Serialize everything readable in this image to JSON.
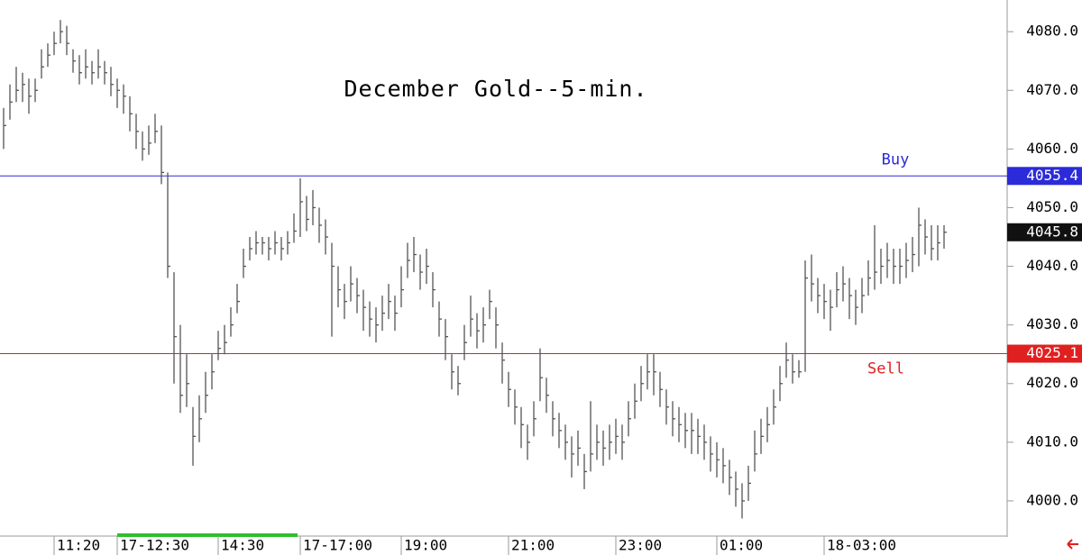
{
  "chart_data": {
    "type": "ohlc",
    "title": "December Gold--5-min.",
    "ylim": [
      3994,
      4085.4
    ],
    "yticks": [
      {
        "value": 4000,
        "label": "4000.0"
      },
      {
        "value": 4010,
        "label": "4010.0"
      },
      {
        "value": 4020,
        "label": "4020.0"
      },
      {
        "value": 4030,
        "label": "4030.0"
      },
      {
        "value": 4040,
        "label": "4040.0"
      },
      {
        "value": 4050,
        "label": "4050.0"
      },
      {
        "value": 4060,
        "label": "4060.0"
      },
      {
        "value": 4070,
        "label": "4070.0"
      },
      {
        "value": 4080,
        "label": "4080.0"
      }
    ],
    "xticks": [
      {
        "value": 8,
        "label": "11:20"
      },
      {
        "value": 18,
        "label": "17-12:30"
      },
      {
        "value": 34,
        "label": "14:30"
      },
      {
        "value": 47,
        "label": "17-17:00"
      },
      {
        "value": 63,
        "label": "19:00"
      },
      {
        "value": 80,
        "label": "21:00"
      },
      {
        "value": 97,
        "label": "23:00"
      },
      {
        "value": 113,
        "label": "01:00"
      },
      {
        "value": 130,
        "label": "18-03:00"
      }
    ],
    "levels": [
      {
        "name": "Buy",
        "value": 4055.4,
        "color": "#2b2bd9"
      },
      {
        "name": "Sell",
        "value": 4025.1,
        "color": "#e02020"
      }
    ],
    "last": 4045.8,
    "bar_color": "#555555",
    "bars": [
      [
        4067,
        4060,
        4064
      ],
      [
        4071,
        4065,
        4068
      ],
      [
        4074,
        4068,
        4070
      ],
      [
        4073,
        4068,
        4071
      ],
      [
        4072,
        4066,
        4069
      ],
      [
        4072,
        4068,
        4070
      ],
      [
        4077,
        4072,
        4074
      ],
      [
        4078,
        4074,
        4076
      ],
      [
        4080,
        4076,
        4078
      ],
      [
        4082,
        4078,
        4080
      ],
      [
        4081,
        4076,
        4078
      ],
      [
        4077,
        4073,
        4075
      ],
      [
        4076,
        4071,
        4073
      ],
      [
        4077,
        4072,
        4074
      ],
      [
        4075,
        4071,
        4073
      ],
      [
        4077,
        4072,
        4074
      ],
      [
        4075,
        4071,
        4073
      ],
      [
        4074,
        4069,
        4071
      ],
      [
        4072,
        4067,
        4070
      ],
      [
        4071,
        4066,
        4069
      ],
      [
        4069,
        4063,
        4066
      ],
      [
        4066,
        4060,
        4063
      ],
      [
        4063,
        4058,
        4060
      ],
      [
        4064,
        4059,
        4061
      ],
      [
        4066,
        4061,
        4063
      ],
      [
        4064,
        4054,
        4056
      ],
      [
        4056,
        4038,
        4040
      ],
      [
        4039,
        4020,
        4028
      ],
      [
        4030,
        4015,
        4018
      ],
      [
        4025,
        4016,
        4020
      ],
      [
        4016,
        4006,
        4011
      ],
      [
        4018,
        4010,
        4014
      ],
      [
        4022,
        4015,
        4018
      ],
      [
        4025,
        4019,
        4022
      ],
      [
        4029,
        4024,
        4026
      ],
      [
        4030,
        4025,
        4027
      ],
      [
        4033,
        4028,
        4030
      ],
      [
        4037,
        4032,
        4034
      ],
      [
        4043,
        4038,
        4040
      ],
      [
        4045,
        4041,
        4043
      ],
      [
        4046,
        4042,
        4044
      ],
      [
        4045,
        4042,
        4044
      ],
      [
        4045,
        4041,
        4043
      ],
      [
        4046,
        4042,
        4044
      ],
      [
        4045,
        4041,
        4043
      ],
      [
        4046,
        4042,
        4044
      ],
      [
        4049,
        4044,
        4046
      ],
      [
        4055,
        4045,
        4051
      ],
      [
        4052,
        4046,
        4048
      ],
      [
        4053,
        4047,
        4050
      ],
      [
        4050,
        4044,
        4047
      ],
      [
        4048,
        4042,
        4045
      ],
      [
        4044,
        4028,
        4040
      ],
      [
        4040,
        4033,
        4036
      ],
      [
        4037,
        4031,
        4034
      ],
      [
        4040,
        4034,
        4037
      ],
      [
        4038,
        4032,
        4035
      ],
      [
        4036,
        4029,
        4033
      ],
      [
        4034,
        4028,
        4031
      ],
      [
        4033,
        4027,
        4030
      ],
      [
        4035,
        4029,
        4032
      ],
      [
        4037,
        4031,
        4034
      ],
      [
        4035,
        4029,
        4032
      ],
      [
        4040,
        4033,
        4036
      ],
      [
        4044,
        4038,
        4041
      ],
      [
        4045,
        4039,
        4042
      ],
      [
        4042,
        4036,
        4039
      ],
      [
        4043,
        4037,
        4040
      ],
      [
        4039,
        4033,
        4036
      ],
      [
        4034,
        4028,
        4031
      ],
      [
        4031,
        4024,
        4028
      ],
      [
        4025,
        4019,
        4022
      ],
      [
        4023,
        4018,
        4020
      ],
      [
        4030,
        4024,
        4027
      ],
      [
        4035,
        4028,
        4031
      ],
      [
        4032,
        4026,
        4029
      ],
      [
        4033,
        4027,
        4030
      ],
      [
        4036,
        4031,
        4034
      ],
      [
        4033,
        4026,
        4030
      ],
      [
        4027,
        4020,
        4024
      ],
      [
        4022,
        4016,
        4019
      ],
      [
        4019,
        4013,
        4016
      ],
      [
        4016,
        4009,
        4013
      ],
      [
        4013,
        4007,
        4010
      ],
      [
        4017,
        4011,
        4014
      ],
      [
        4026,
        4017,
        4021
      ],
      [
        4021,
        4015,
        4018
      ],
      [
        4017,
        4011,
        4014
      ],
      [
        4015,
        4009,
        4012
      ],
      [
        4013,
        4007,
        4010
      ],
      [
        4011,
        4004,
        4008
      ],
      [
        4012,
        4006,
        4009
      ],
      [
        4008,
        4002,
        4005
      ],
      [
        4017,
        4005,
        4008
      ],
      [
        4013,
        4007,
        4010
      ],
      [
        4012,
        4006,
        4009
      ],
      [
        4013,
        4007,
        4010
      ],
      [
        4014,
        4008,
        4011
      ],
      [
        4013,
        4007,
        4010
      ],
      [
        4017,
        4011,
        4014
      ],
      [
        4020,
        4014,
        4017
      ],
      [
        4023,
        4017,
        4020
      ],
      [
        4025,
        4019,
        4022
      ],
      [
        4025,
        4018,
        4022
      ],
      [
        4022,
        4016,
        4019
      ],
      [
        4019,
        4013,
        4016
      ],
      [
        4017,
        4011,
        4014
      ],
      [
        4016,
        4010,
        4013
      ],
      [
        4015,
        4009,
        4012
      ],
      [
        4015,
        4008,
        4012
      ],
      [
        4014,
        4008,
        4011
      ],
      [
        4013,
        4007,
        4010
      ],
      [
        4011,
        4005,
        4008
      ],
      [
        4010,
        4004,
        4007
      ],
      [
        4009,
        4003,
        4006
      ],
      [
        4007,
        4001,
        4004
      ],
      [
        4005,
        3999,
        4002
      ],
      [
        4003,
        3997,
        4000
      ],
      [
        4006,
        4000,
        4003
      ],
      [
        4012,
        4005,
        4008
      ],
      [
        4014,
        4008,
        4011
      ],
      [
        4016,
        4010,
        4013
      ],
      [
        4019,
        4013,
        4016
      ],
      [
        4023,
        4017,
        4020
      ],
      [
        4027,
        4021,
        4024
      ],
      [
        4025,
        4020,
        4022
      ],
      [
        4024,
        4021,
        4022
      ],
      [
        4041,
        4022,
        4038
      ],
      [
        4042,
        4034,
        4037
      ],
      [
        4038,
        4032,
        4035
      ],
      [
        4037,
        4031,
        4034
      ],
      [
        4036,
        4029,
        4033
      ],
      [
        4039,
        4033,
        4036
      ],
      [
        4040,
        4034,
        4037
      ],
      [
        4038,
        4031,
        4035
      ],
      [
        4036,
        4030,
        4033
      ],
      [
        4038,
        4032,
        4035
      ],
      [
        4041,
        4035,
        4038
      ],
      [
        4047,
        4036,
        4039
      ],
      [
        4043,
        4037,
        4040
      ],
      [
        4044,
        4038,
        4041
      ],
      [
        4043,
        4037,
        4040
      ],
      [
        4043,
        4037,
        4040
      ],
      [
        4044,
        4038,
        4041
      ],
      [
        4045,
        4039,
        4042
      ],
      [
        4050,
        4040,
        4047
      ],
      [
        4048,
        4042,
        4045
      ],
      [
        4047,
        4041,
        4043
      ],
      [
        4047,
        4041,
        4044
      ],
      [
        4047,
        4043,
        4045.8
      ]
    ]
  }
}
